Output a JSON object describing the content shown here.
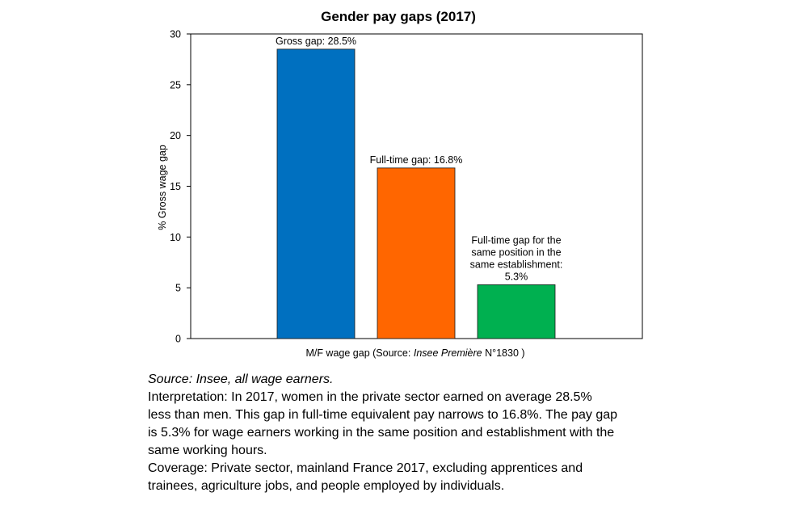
{
  "chart_data": {
    "type": "bar",
    "title": "Gender pay gaps (2017)",
    "ylabel": "% Gross wage gap",
    "xlabel_prefix": "M/F wage gap (Source: ",
    "xlabel_source": "Insee Première",
    "xlabel_suffix": " N°1830  )",
    "ylim": [
      0,
      30
    ],
    "yticks": [
      0,
      5,
      10,
      15,
      20,
      25,
      30
    ],
    "grid": false,
    "bars": [
      {
        "value": 28.5,
        "color": "#0070c0",
        "label_lines": [
          "Gross gap: 28.5%"
        ]
      },
      {
        "value": 16.8,
        "color": "#ff6600",
        "label_lines": [
          "Full-time  gap: 16.8%"
        ]
      },
      {
        "value": 5.3,
        "color": "#00b050",
        "label_lines": [
          "Full-time gap for the",
          "same position in the",
          "same establishment:",
          "5.3%"
        ]
      }
    ]
  },
  "notes": {
    "source": "Source: Insee, all wage earners.",
    "interpretation_lines": [
      "Interpretation: In 2017, women in the private sector earned on average 28.5%",
      "less than men. This gap in full-time equivalent pay narrows to 16.8%. The pay gap",
      "is 5.3% for wage earners working in the same position and establishment with the",
      "same working hours."
    ],
    "coverage_lines": [
      "Coverage: Private sector, mainland France 2017, excluding apprentices and",
      "trainees, agriculture jobs, and people employed by individuals."
    ]
  }
}
